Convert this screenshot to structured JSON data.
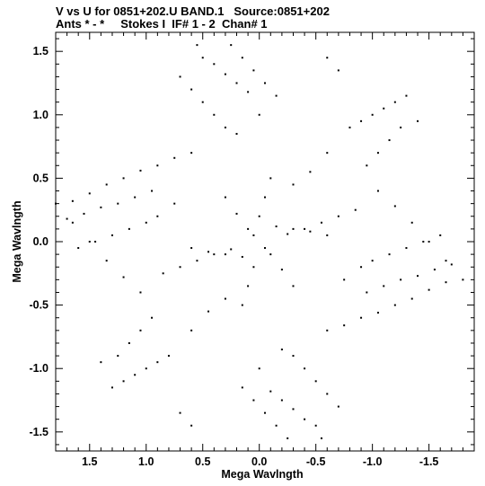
{
  "header": {
    "title_line1": "V vs U for 0851+202.U BAND.1   Source:0851+202",
    "title_line2": "Ants * - *     Stokes I  IF# 1 - 2  Chan# 1"
  },
  "chart_data": {
    "type": "scatter",
    "title": "V vs U for 0851+202.U BAND.1   Source:0851+202",
    "subtitle": "Ants * - *     Stokes I  IF# 1 - 2  Chan# 1",
    "xlabel": "Mega Wavlngth",
    "ylabel": "Mega Wavlngth",
    "xlim": [
      1.8,
      -1.9
    ],
    "ylim": [
      -1.65,
      1.65
    ],
    "x_inverted": true,
    "x_ticks": [
      1.5,
      1.0,
      0.5,
      0.0,
      -0.5,
      -1.0,
      -1.5
    ],
    "x_tick_labels": [
      "1.5",
      "1.0",
      "0.5",
      "0.0",
      "-0.5",
      "-1.0",
      "-1.5"
    ],
    "y_ticks": [
      1.5,
      1.0,
      0.5,
      0.0,
      -0.5,
      -1.0,
      -1.5
    ],
    "y_tick_labels": [
      "1.5",
      "1.0",
      "0.5",
      "0.0",
      "-0.5",
      "-1.0",
      "-1.5"
    ],
    "grid": false,
    "legend": "none",
    "marker_color": "#000000",
    "series": [
      {
        "values": [
          [
            1.65,
            0.32
          ],
          [
            1.5,
            0.38
          ],
          [
            1.35,
            0.45
          ],
          [
            1.2,
            0.5
          ],
          [
            1.05,
            0.56
          ],
          [
            0.9,
            0.6
          ],
          [
            0.75,
            0.66
          ],
          [
            0.6,
            0.7
          ],
          [
            -1.65,
            -0.32
          ],
          [
            -1.5,
            -0.38
          ],
          [
            -1.35,
            -0.45
          ],
          [
            -1.2,
            -0.5
          ],
          [
            -1.05,
            -0.56
          ],
          [
            -0.9,
            -0.6
          ],
          [
            -0.75,
            -0.66
          ],
          [
            -0.6,
            -0.7
          ],
          [
            1.7,
            0.18
          ],
          [
            1.55,
            0.22
          ],
          [
            1.4,
            0.27
          ],
          [
            1.25,
            0.3
          ],
          [
            1.1,
            0.35
          ],
          [
            0.95,
            0.4
          ],
          [
            -1.7,
            -0.18
          ],
          [
            -1.55,
            -0.22
          ],
          [
            -1.4,
            -0.27
          ],
          [
            -1.25,
            -0.3
          ],
          [
            -1.1,
            -0.35
          ],
          [
            -0.95,
            -0.4
          ],
          [
            1.6,
            -0.05
          ],
          [
            1.45,
            0.0
          ],
          [
            1.3,
            0.05
          ],
          [
            1.15,
            0.1
          ],
          [
            1.0,
            0.15
          ],
          [
            -1.6,
            0.05
          ],
          [
            -1.45,
            0.0
          ],
          [
            -1.3,
            -0.05
          ],
          [
            -1.15,
            -0.1
          ],
          [
            -1.0,
            -0.15
          ],
          [
            -1.8,
            -0.3
          ],
          [
            -1.65,
            -0.15
          ],
          [
            -1.5,
            0.0
          ],
          [
            -1.35,
            0.15
          ],
          [
            -1.2,
            0.28
          ],
          [
            -1.05,
            0.4
          ],
          [
            1.8,
            0.3
          ],
          [
            1.65,
            0.15
          ],
          [
            1.5,
            0.0
          ],
          [
            1.35,
            -0.15
          ],
          [
            1.2,
            -0.28
          ],
          [
            1.05,
            -0.4
          ],
          [
            -1.3,
            1.15
          ],
          [
            -1.2,
            1.1
          ],
          [
            -1.1,
            1.05
          ],
          [
            -1.0,
            1.0
          ],
          [
            -0.9,
            0.95
          ],
          [
            -0.8,
            0.9
          ],
          [
            1.3,
            -1.15
          ],
          [
            1.2,
            -1.1
          ],
          [
            1.1,
            -1.05
          ],
          [
            1.0,
            -1.0
          ],
          [
            0.9,
            -0.95
          ],
          [
            0.8,
            -0.9
          ],
          [
            -1.4,
            0.95
          ],
          [
            -1.25,
            0.9
          ],
          [
            -1.15,
            0.8
          ],
          [
            -1.05,
            0.7
          ],
          [
            -0.95,
            0.6
          ],
          [
            1.4,
            -0.95
          ],
          [
            1.25,
            -0.9
          ],
          [
            1.15,
            -0.8
          ],
          [
            1.05,
            -0.7
          ],
          [
            0.95,
            -0.6
          ],
          [
            0.55,
            1.55
          ],
          [
            0.5,
            1.45
          ],
          [
            0.4,
            1.4
          ],
          [
            0.3,
            1.32
          ],
          [
            0.2,
            1.25
          ],
          [
            0.1,
            1.18
          ],
          [
            -0.55,
            -1.55
          ],
          [
            -0.5,
            -1.45
          ],
          [
            -0.4,
            -1.4
          ],
          [
            -0.3,
            -1.32
          ],
          [
            -0.2,
            -1.25
          ],
          [
            -0.1,
            -1.18
          ],
          [
            0.25,
            1.55
          ],
          [
            0.15,
            1.45
          ],
          [
            0.05,
            1.35
          ],
          [
            -0.05,
            1.25
          ],
          [
            -0.15,
            1.15
          ],
          [
            -0.25,
            -1.55
          ],
          [
            -0.15,
            -1.45
          ],
          [
            -0.05,
            -1.35
          ],
          [
            0.05,
            -1.25
          ],
          [
            0.15,
            -1.15
          ],
          [
            0.7,
            1.3
          ],
          [
            0.6,
            1.2
          ],
          [
            0.5,
            1.1
          ],
          [
            0.4,
            1.0
          ],
          [
            0.3,
            0.9
          ],
          [
            -0.7,
            -1.3
          ],
          [
            -0.6,
            -1.2
          ],
          [
            -0.5,
            -1.1
          ],
          [
            -0.4,
            -1.0
          ],
          [
            -0.3,
            -0.9
          ],
          [
            0.6,
            -0.05
          ],
          [
            0.45,
            -0.08
          ],
          [
            0.3,
            -0.1
          ],
          [
            0.15,
            -0.12
          ],
          [
            0.05,
            0.05
          ],
          [
            -0.6,
            0.05
          ],
          [
            -0.45,
            0.08
          ],
          [
            -0.3,
            0.1
          ],
          [
            -0.15,
            0.12
          ],
          [
            -0.05,
            -0.05
          ],
          [
            -0.85,
            0.25
          ],
          [
            -0.7,
            0.2
          ],
          [
            -0.55,
            0.15
          ],
          [
            -0.4,
            0.1
          ],
          [
            -0.25,
            0.06
          ],
          [
            0.85,
            -0.25
          ],
          [
            0.7,
            -0.2
          ],
          [
            0.55,
            -0.15
          ],
          [
            0.4,
            -0.1
          ],
          [
            0.25,
            -0.06
          ],
          [
            0.3,
            0.35
          ],
          [
            0.2,
            0.22
          ],
          [
            0.1,
            0.1
          ],
          [
            -0.1,
            -0.1
          ],
          [
            -0.2,
            -0.22
          ],
          [
            -0.3,
            -0.35
          ],
          [
            -0.1,
            0.5
          ],
          [
            -0.05,
            0.35
          ],
          [
            0.0,
            0.2
          ],
          [
            0.05,
            -0.2
          ],
          [
            0.1,
            -0.35
          ],
          [
            0.15,
            -0.5
          ],
          [
            -0.3,
            0.45
          ],
          [
            -0.45,
            0.55
          ],
          [
            -0.6,
            0.7
          ],
          [
            0.3,
            -0.45
          ],
          [
            0.45,
            -0.55
          ],
          [
            0.6,
            -0.7
          ],
          [
            0.9,
            0.2
          ],
          [
            0.75,
            0.3
          ],
          [
            -0.9,
            -0.2
          ],
          [
            -0.75,
            -0.3
          ],
          [
            0.2,
            0.85
          ],
          [
            -0.2,
            -0.85
          ],
          [
            0.0,
            1.0
          ],
          [
            0.0,
            -1.0
          ],
          [
            -0.6,
            1.45
          ],
          [
            -0.7,
            1.35
          ],
          [
            0.6,
            -1.45
          ],
          [
            0.7,
            -1.35
          ]
        ]
      }
    ]
  }
}
